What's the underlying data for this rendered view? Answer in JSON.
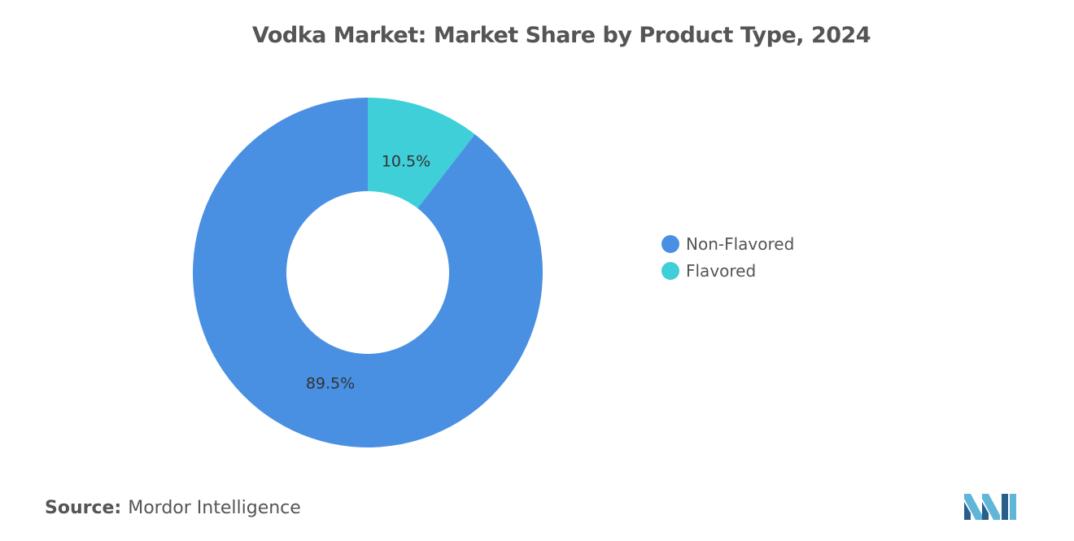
{
  "title": "Vodka Market: Market Share by Product Type, 2024",
  "source": {
    "label": "Source:",
    "value": "Mordor Intelligence"
  },
  "logo": {
    "icon": "mordor-intelligence-logo",
    "colors": [
      "#5fb6d9",
      "#2a5e8a"
    ]
  },
  "colors": {
    "non_flavored": "#4a90e2",
    "flavored": "#3ecfd9",
    "title_text": "#555555"
  },
  "chart_data": {
    "type": "pie",
    "donut": true,
    "title": "Vodka Market: Market Share by Product Type, 2024",
    "categories": [
      "Non-Flavored",
      "Flavored"
    ],
    "values": [
      89.5,
      10.5
    ],
    "unit": "%",
    "data_labels": [
      "89.5%",
      "10.5%"
    ],
    "colors": [
      "#4a90e2",
      "#3ecfd9"
    ],
    "start_angle_deg": 0,
    "direction": "counterclockwise-from-top for Flavored",
    "legend_position": "right"
  },
  "legend": {
    "items": [
      {
        "label": "Non-Flavored",
        "color": "#4a90e2"
      },
      {
        "label": "Flavored",
        "color": "#3ecfd9"
      }
    ]
  }
}
